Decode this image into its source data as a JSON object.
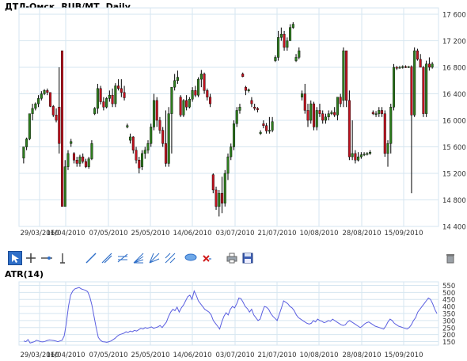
{
  "chart_data": [
    {
      "type": "candlestick",
      "title": "ДТЛ-Омск,  RUB/MT ,Daily",
      "ylim": [
        14400,
        17600
      ],
      "y_ticks": [
        "14 400",
        "14 800",
        "15 200",
        "15 600",
        "16 000",
        "16 400",
        "16 800",
        "17 200",
        "17 600"
      ],
      "y_tick_values": [
        14400,
        14800,
        15200,
        15600,
        16000,
        16400,
        16800,
        17200,
        17600
      ],
      "x_ticks": [
        "29/03/2010",
        "16/04/2010",
        "07/05/2010",
        "25/05/2010",
        "14/06/2010",
        "03/07/2010",
        "21/07/2010",
        "10/08/2010",
        "28/08/2010",
        "15/09/2010"
      ],
      "grid": true,
      "colors": {
        "up": "#2e7d1e",
        "down": "#c1121f",
        "wick": "#000000",
        "grid": "#d6e6f0"
      },
      "candles": [
        [
          15430,
          15600,
          15350,
          15600
        ],
        [
          15600,
          15740,
          15550,
          15720
        ],
        [
          15720,
          16100,
          15700,
          16100
        ],
        [
          16100,
          16250,
          16000,
          16180
        ],
        [
          16180,
          16270,
          16150,
          16250
        ],
        [
          16250,
          16380,
          16200,
          16330
        ],
        [
          16330,
          16440,
          16300,
          16400
        ],
        [
          16400,
          16470,
          16380,
          16450
        ],
        [
          16450,
          16480,
          16380,
          16420
        ],
        [
          16420,
          16420,
          16200,
          16210
        ],
        [
          16210,
          16230,
          16050,
          16080
        ],
        [
          16080,
          16180,
          15970,
          16000
        ],
        [
          16200,
          16800,
          15500,
          15650
        ],
        [
          17050,
          17050,
          14700,
          14700
        ],
        [
          14700,
          15400,
          14700,
          15300
        ],
        [
          15300,
          15550,
          15250,
          15500
        ],
        [
          15650,
          15720,
          15600,
          15680
        ],
        [
          15500,
          15520,
          15350,
          15400
        ],
        [
          15400,
          15450,
          15300,
          15350
        ],
        [
          15350,
          15480,
          15300,
          15450
        ],
        [
          15450,
          15500,
          15350,
          15380
        ],
        [
          15380,
          15420,
          15280,
          15300
        ],
        [
          15300,
          15450,
          15270,
          15420
        ],
        [
          15420,
          15700,
          15400,
          15650
        ],
        [
          16100,
          16200,
          16080,
          16180
        ],
        [
          16180,
          16550,
          16100,
          16480
        ],
        [
          16480,
          16520,
          16240,
          16280
        ],
        [
          16280,
          16350,
          16150,
          16200
        ],
        [
          16200,
          16350,
          16180,
          16330
        ],
        [
          16330,
          16450,
          16280,
          16380
        ],
        [
          16380,
          16480,
          16200,
          16250
        ],
        [
          16250,
          16560,
          16200,
          16520
        ],
        [
          16520,
          16620,
          16450,
          16480
        ],
        [
          16480,
          16620,
          16350,
          16420
        ],
        [
          16420,
          16520,
          16300,
          16340
        ],
        [
          15900,
          15950,
          15880,
          15920
        ],
        [
          15700,
          15800,
          15650,
          15750
        ],
        [
          15750,
          15760,
          15500,
          15550
        ],
        [
          15550,
          15600,
          15350,
          15400
        ],
        [
          15400,
          15450,
          15200,
          15280
        ],
        [
          15300,
          15550,
          15250,
          15500
        ],
        [
          15500,
          15600,
          15420,
          15550
        ],
        [
          15550,
          15700,
          15500,
          15650
        ],
        [
          15650,
          15950,
          15600,
          15900
        ],
        [
          15900,
          16400,
          15850,
          16300
        ],
        [
          16300,
          16350,
          15900,
          16000
        ],
        [
          16000,
          16050,
          15800,
          15850
        ],
        [
          15850,
          15900,
          15600,
          15650
        ],
        [
          15650,
          16150,
          15300,
          15350
        ],
        [
          15350,
          16200,
          15300,
          16100
        ],
        [
          16100,
          16500,
          15500,
          16500
        ],
        [
          16500,
          16700,
          16450,
          16600
        ],
        [
          16600,
          16750,
          16550,
          16650
        ],
        [
          16350,
          16380,
          16050,
          16080
        ],
        [
          16080,
          16320,
          16050,
          16300
        ],
        [
          16300,
          16380,
          16150,
          16200
        ],
        [
          16200,
          16350,
          16180,
          16320
        ],
        [
          16320,
          16500,
          16280,
          16450
        ],
        [
          16450,
          16520,
          16350,
          16380
        ],
        [
          16380,
          16650,
          16350,
          16620
        ],
        [
          16620,
          16760,
          16500,
          16700
        ],
        [
          16700,
          16720,
          16400,
          16450
        ],
        [
          16450,
          16480,
          16300,
          16350
        ],
        [
          16350,
          16400,
          16200,
          16250
        ],
        [
          15180,
          15200,
          14900,
          14950
        ],
        [
          14950,
          15000,
          14650,
          14700
        ],
        [
          14700,
          14950,
          14550,
          14900
        ],
        [
          14900,
          15150,
          14600,
          14750
        ],
        [
          14750,
          15250,
          14700,
          15200
        ],
        [
          15200,
          15500,
          15100,
          15450
        ],
        [
          15450,
          15650,
          15400,
          15600
        ],
        [
          15600,
          16000,
          15550,
          15950
        ],
        [
          15950,
          16200,
          15900,
          16150
        ],
        [
          16150,
          16250,
          16100,
          16200
        ],
        [
          16700,
          16720,
          16650,
          16660
        ],
        [
          16500,
          16520,
          16380,
          16450
        ],
        [
          16450,
          16480,
          16420,
          16460
        ],
        [
          16300,
          16350,
          16200,
          16250
        ],
        [
          16200,
          16250,
          16150,
          16180
        ],
        [
          16180,
          16200,
          16120,
          16160
        ],
        [
          15800,
          15850,
          15780,
          15820
        ],
        [
          15950,
          16000,
          15880,
          15920
        ],
        [
          15920,
          15960,
          15800,
          15840
        ],
        [
          15840,
          16050,
          15800,
          15850
        ],
        [
          15850,
          16050,
          15820,
          15980
        ],
        [
          16900,
          16980,
          16880,
          16950
        ],
        [
          16950,
          17350,
          16900,
          17250
        ],
        [
          17250,
          17400,
          17200,
          17300
        ],
        [
          17300,
          17350,
          17050,
          17100
        ],
        [
          17100,
          17250,
          17050,
          17200
        ],
        [
          17200,
          17450,
          17200,
          17400
        ],
        [
          17400,
          17480,
          17380,
          17450
        ],
        [
          16900,
          17000,
          16880,
          16950
        ],
        [
          16950,
          17100,
          16920,
          17050
        ],
        [
          16350,
          16450,
          16300,
          16400
        ],
        [
          16400,
          16550,
          16100,
          16150
        ],
        [
          16150,
          16250,
          15900,
          16000
        ],
        [
          16000,
          16300,
          15950,
          16250
        ],
        [
          16250,
          16280,
          15850,
          15900
        ],
        [
          15900,
          16200,
          15850,
          16150
        ],
        [
          16150,
          16250,
          16050,
          16100
        ],
        [
          16100,
          16150,
          15950,
          16000
        ],
        [
          16000,
          16100,
          15950,
          16050
        ],
        [
          16050,
          16150,
          16000,
          16100
        ],
        [
          16100,
          16150,
          16080,
          16120
        ],
        [
          16120,
          16200,
          16050,
          16080
        ],
        [
          16080,
          16350,
          16000,
          16350
        ],
        [
          16350,
          16400,
          16200,
          16250
        ],
        [
          16300,
          17100,
          16200,
          17050
        ],
        [
          17050,
          17050,
          16200,
          16300
        ],
        [
          16300,
          16450,
          15400,
          15450
        ],
        [
          15450,
          16000,
          15400,
          15500
        ],
        [
          15500,
          15550,
          15350,
          15400
        ],
        [
          15400,
          15520,
          15380,
          15450
        ],
        [
          15450,
          15520,
          15420,
          15480
        ],
        [
          15480,
          15520,
          15460,
          15490
        ],
        [
          15490,
          15520,
          15470,
          15500
        ],
        [
          15500,
          15550,
          15480,
          15520
        ],
        [
          16120,
          16150,
          16080,
          16100
        ],
        [
          16100,
          16140,
          16050,
          16100
        ],
        [
          16100,
          16200,
          16050,
          16150
        ],
        [
          16150,
          16200,
          16050,
          16100
        ],
        [
          16100,
          16150,
          15450,
          15500
        ],
        [
          15500,
          15700,
          15300,
          15650
        ],
        [
          15650,
          16250,
          15500,
          16200
        ],
        [
          16200,
          16850,
          16150,
          16800
        ],
        [
          16800,
          16820,
          16760,
          16790
        ],
        [
          16790,
          16820,
          16780,
          16800
        ],
        [
          16800,
          16830,
          16780,
          16810
        ],
        [
          16810,
          16830,
          16790,
          16800
        ],
        [
          16800,
          16820,
          16790,
          16810
        ],
        [
          16810,
          16830,
          14900,
          16080
        ],
        [
          16080,
          17100,
          16050,
          17050
        ],
        [
          17050,
          17080,
          16900,
          16920
        ],
        [
          16920,
          17000,
          16800,
          16800
        ],
        [
          16800,
          16820,
          16050,
          16100
        ],
        [
          16100,
          16900,
          16050,
          16850
        ],
        [
          16850,
          16950,
          16750,
          16800
        ],
        [
          16800,
          16880,
          16780,
          16850
        ]
      ]
    },
    {
      "type": "line",
      "title": "ATR(14)",
      "ylim": [
        125,
        575
      ],
      "y_ticks": [
        "150",
        "200",
        "250",
        "300",
        "350",
        "400",
        "450",
        "500",
        "550"
      ],
      "y_tick_values": [
        150,
        200,
        250,
        300,
        350,
        400,
        450,
        500,
        550
      ],
      "x_ticks": [
        "29/03/2010",
        "16/04/2010",
        "07/05/2010",
        "25/05/2010",
        "14/06/2010",
        "03/07/2010",
        "21/07/2010",
        "10/08/2010",
        "28/08/2010",
        "15/09/2010"
      ],
      "grid": true,
      "colors": {
        "line": "#5b5fe0",
        "grid": "#d6e6f0"
      },
      "values": [
        155,
        150,
        165,
        140,
        145,
        150,
        160,
        155,
        150,
        148,
        152,
        158,
        162,
        160,
        158,
        155,
        150,
        155,
        160,
        190,
        280,
        400,
        480,
        510,
        525,
        530,
        535,
        525,
        520,
        515,
        505,
        470,
        410,
        330,
        250,
        180,
        160,
        150,
        148,
        145,
        150,
        155,
        165,
        175,
        190,
        200,
        205,
        210,
        220,
        215,
        225,
        220,
        230,
        225,
        235,
        245,
        240,
        250,
        245,
        250,
        255,
        245,
        250,
        255,
        265,
        250,
        270,
        290,
        330,
        360,
        380,
        370,
        395,
        360,
        390,
        410,
        440,
        470,
        480,
        450,
        510,
        480,
        440,
        420,
        400,
        380,
        370,
        360,
        340,
        300,
        280,
        260,
        240,
        290,
        330,
        355,
        340,
        380,
        400,
        390,
        420,
        460,
        455,
        430,
        400,
        385,
        360,
        380,
        340,
        320,
        300,
        310,
        360,
        400,
        395,
        380,
        350,
        330,
        315,
        300,
        345,
        390,
        440,
        430,
        420,
        400,
        390,
        370,
        340,
        320,
        310,
        300,
        290,
        280,
        275,
        280,
        300,
        290,
        310,
        300,
        295,
        285,
        290,
        300,
        295,
        310,
        300,
        290,
        280,
        270,
        265,
        270,
        290,
        300,
        290,
        280,
        270,
        260,
        250,
        260,
        275,
        285,
        290,
        280,
        270,
        260,
        255,
        250,
        245,
        240,
        260,
        290,
        310,
        300,
        280,
        270,
        260,
        255,
        250,
        245,
        240,
        250,
        270,
        300,
        320,
        360,
        380,
        400,
        420,
        440,
        460,
        450,
        420,
        380,
        350
      ]
    }
  ],
  "toolbar": {
    "tools": [
      "cursor-icon",
      "crosshair-icon",
      "horizontal-line-icon",
      "vertical-line-icon",
      "trend-line-icon",
      "ray-line-icon",
      "parallel-channel-icon",
      "fibonacci-fan-icon",
      "gann-line-icon",
      "pitchfork-icon",
      "comment-icon",
      "delete-drawings-icon",
      "print-icon",
      "save-icon",
      "trash-icon"
    ]
  }
}
